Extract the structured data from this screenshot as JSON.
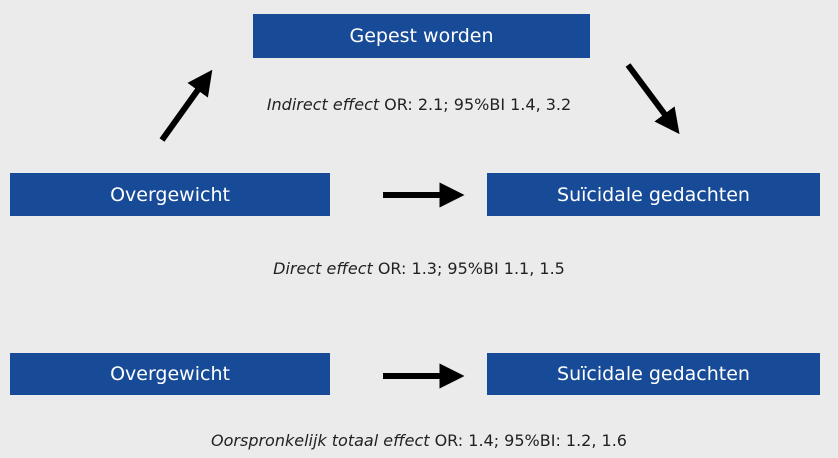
{
  "nodes": [
    {
      "label": "Gepest worden"
    },
    {
      "label": "Overgewicht"
    },
    {
      "label": "Suïcidale gedachten"
    },
    {
      "label": "Overgewicht"
    },
    {
      "label": "Suïcidale gedachten"
    }
  ],
  "effects": [
    {
      "name": "Indirect effect",
      "text": "OR: 2.1; 95%BI 1.4, 3.2"
    },
    {
      "name": "Direct effect",
      "text": "OR: 1.3; 95%BI 1.1, 1.5"
    },
    {
      "name": "Oorspronkelijk totaal effect",
      "text": "OR: 1.4; 95%BI: 1.2, 1.6"
    }
  ]
}
